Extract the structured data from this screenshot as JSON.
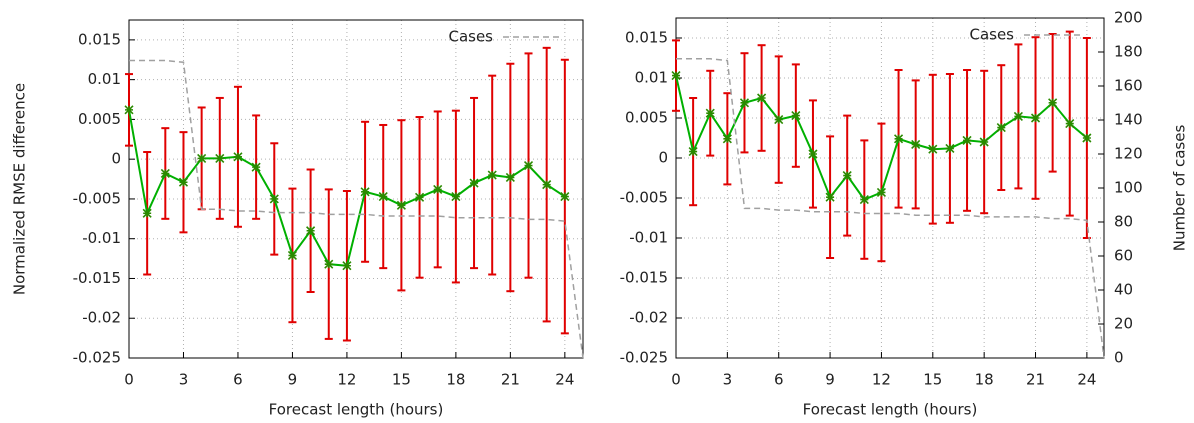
{
  "chart_data": [
    {
      "type": "line",
      "x_label": "Forecast length (hours)",
      "y_label": "Normalized RMSE difference",
      "xlim": [
        0,
        25
      ],
      "xticks": [
        0,
        3,
        6,
        9,
        12,
        15,
        18,
        21,
        24
      ],
      "ylim": [
        -0.025,
        0.0175
      ],
      "yticks": [
        0.015,
        0.01,
        0.005,
        0,
        -0.005,
        -0.01,
        -0.015,
        -0.02,
        -0.025
      ],
      "y2lim": [
        0,
        200
      ],
      "grid": true,
      "legend": "top right",
      "series": [
        {
          "color": "#00b000",
          "error_color": "#e00000",
          "x": [
            0,
            1,
            2,
            3,
            4,
            5,
            6,
            7,
            8,
            9,
            10,
            11,
            12,
            13,
            14,
            15,
            16,
            17,
            18,
            19,
            20,
            21,
            22,
            23,
            24
          ],
          "values": [
            0.0062,
            -0.0068,
            -0.0018,
            -0.0029,
            0.0001,
            0.0001,
            0.0003,
            -0.001,
            -0.005,
            -0.0121,
            -0.009,
            -0.0132,
            -0.0134,
            -0.0041,
            -0.0047,
            -0.0058,
            -0.0048,
            -0.0038,
            -0.0047,
            -0.003,
            -0.002,
            -0.0023,
            -0.0008,
            -0.0032,
            -0.0047
          ],
          "errors": [
            0.0045,
            0.0077,
            0.0057,
            0.0063,
            0.0064,
            0.0076,
            0.0088,
            0.0065,
            0.007,
            0.0084,
            0.0077,
            0.0094,
            0.0094,
            0.0088,
            0.009,
            0.0107,
            0.0101,
            0.0098,
            0.0108,
            0.0107,
            0.0125,
            0.0143,
            0.0141,
            0.0172,
            0.0172
          ]
        },
        {
          "name": "Cases",
          "color": "#a0a0a0",
          "axis": "y2",
          "dashed": true,
          "x": [
            0,
            1,
            2,
            3,
            4,
            5,
            6,
            7,
            8,
            9,
            10,
            11,
            12,
            13,
            14,
            15,
            16,
            17,
            18,
            19,
            20,
            21,
            22,
            23,
            24,
            25
          ],
          "values": [
            176,
            176,
            176,
            175,
            88,
            88,
            87,
            87,
            86,
            86,
            86,
            85,
            85,
            85,
            84,
            84,
            84,
            84,
            83,
            83,
            83,
            83,
            82,
            82,
            81,
            0
          ]
        }
      ]
    },
    {
      "type": "line",
      "x_label": "Forecast length (hours)",
      "y2_label": "Number of cases",
      "xlim": [
        0,
        25
      ],
      "xticks": [
        0,
        3,
        6,
        9,
        12,
        15,
        18,
        21,
        24
      ],
      "ylim": [
        -0.025,
        0.0175
      ],
      "yticks": [
        0.015,
        0.01,
        0.005,
        0,
        -0.005,
        -0.01,
        -0.015,
        -0.02,
        -0.025
      ],
      "y2lim": [
        0,
        200
      ],
      "y2ticks": [
        0,
        20,
        40,
        60,
        80,
        100,
        120,
        140,
        160,
        180,
        200
      ],
      "grid": true,
      "legend": "top right",
      "series": [
        {
          "color": "#00b000",
          "error_color": "#e00000",
          "x": [
            0,
            1,
            2,
            3,
            4,
            5,
            6,
            7,
            8,
            9,
            10,
            11,
            12,
            13,
            14,
            15,
            16,
            17,
            18,
            19,
            20,
            21,
            22,
            23,
            24
          ],
          "values": [
            0.0103,
            0.0008,
            0.0056,
            0.0024,
            0.0069,
            0.0075,
            0.0048,
            0.0053,
            0.0005,
            -0.0049,
            -0.0022,
            -0.0052,
            -0.0043,
            0.0024,
            0.0017,
            0.0011,
            0.0012,
            0.0022,
            0.002,
            0.0038,
            0.0052,
            0.005,
            0.0069,
            0.0043,
            0.0025
          ],
          "errors": [
            0.0044,
            0.0067,
            0.0053,
            0.0057,
            0.0062,
            0.0066,
            0.0079,
            0.0064,
            0.0067,
            0.0076,
            0.0075,
            0.0074,
            0.0086,
            0.0086,
            0.008,
            0.0093,
            0.0093,
            0.0088,
            0.0089,
            0.0078,
            0.009,
            0.0101,
            0.0086,
            0.0115,
            0.0125
          ]
        },
        {
          "name": "Cases",
          "color": "#a0a0a0",
          "axis": "y2",
          "dashed": true,
          "x": [
            0,
            1,
            2,
            3,
            4,
            5,
            6,
            7,
            8,
            9,
            10,
            11,
            12,
            13,
            14,
            15,
            16,
            17,
            18,
            19,
            20,
            21,
            22,
            23,
            24,
            25
          ],
          "values": [
            176,
            176,
            176,
            175,
            88,
            88,
            87,
            87,
            86,
            86,
            86,
            85,
            85,
            85,
            84,
            84,
            84,
            84,
            83,
            83,
            83,
            83,
            82,
            82,
            81,
            0
          ]
        }
      ]
    }
  ]
}
